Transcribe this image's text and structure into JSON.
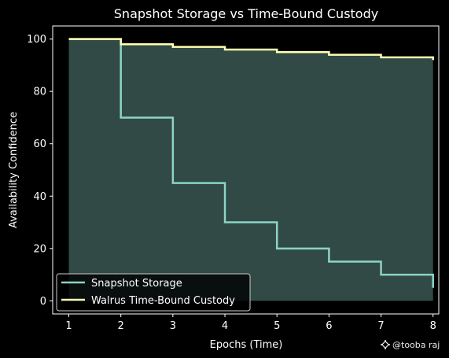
{
  "chart_data": {
    "type": "line",
    "title": "Snapshot Storage vs Time-Bound Custody",
    "xlabel": "Epochs (Time)",
    "ylabel": "Availability Confidence",
    "x": [
      1,
      2,
      3,
      4,
      5,
      6,
      7,
      8
    ],
    "xticks": [
      1,
      2,
      3,
      4,
      5,
      6,
      7,
      8
    ],
    "yticks": [
      0,
      20,
      40,
      60,
      80,
      100
    ],
    "xlim": [
      0.69,
      8.11
    ],
    "ylim": [
      -5,
      105
    ],
    "step": "post",
    "grid": false,
    "legend_position": "lower-left",
    "series": [
      {
        "name": "Snapshot Storage",
        "values": [
          100,
          70,
          45,
          30,
          20,
          15,
          10,
          5
        ],
        "color": "#8dd3c7"
      },
      {
        "name": "Walrus Time-Bound Custody",
        "values": [
          100,
          98,
          97,
          96,
          95,
          94,
          93,
          92
        ],
        "color": "#ffffb3"
      }
    ],
    "fill": {
      "series": "Walrus Time-Bound Custody",
      "color": "#8dd3c7",
      "opacity": 0.35
    }
  },
  "watermark": {
    "text": "@tooba raj",
    "icon": "sparkle-icon"
  },
  "colors": {
    "background": "#000000",
    "axes": "#ffffff",
    "text": "#ffffff"
  }
}
